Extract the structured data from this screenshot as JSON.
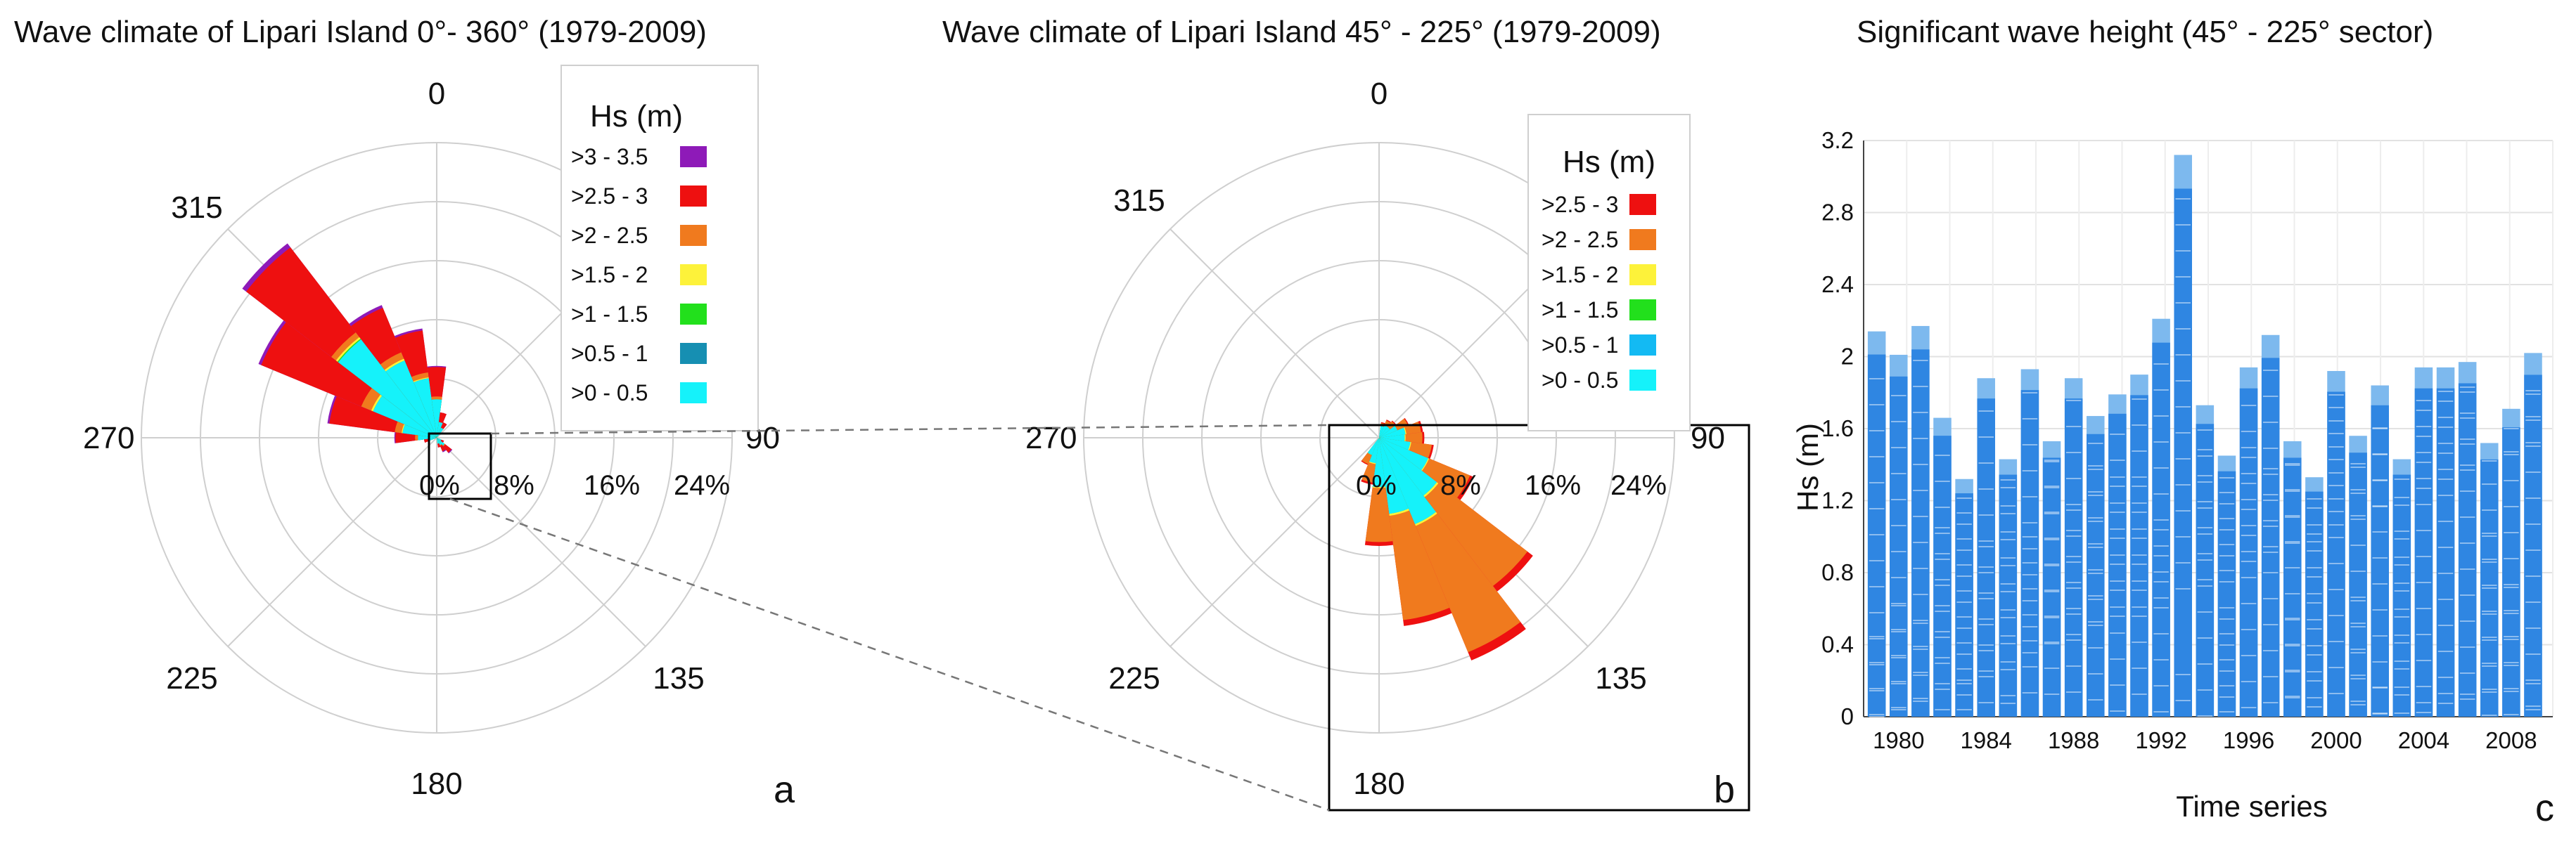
{
  "colors": {
    "purple": "#8e1ab8",
    "red": "#ee1010",
    "orange": "#f07a1e",
    "yellow": "#fdf23a",
    "green": "#22e01c",
    "teal": "#168fb2",
    "cyan": "#15f2fa",
    "blue": "#13baf3",
    "bar": "#2f86e2",
    "bar_light": "#7db9ee",
    "grid": "#cfcfcf"
  },
  "chart_data": [
    {
      "type": "wind-rose",
      "panel_label": "a",
      "title": "Wave climate of Lipari Island 0°- 360° (1979-2009)",
      "direction_labels": [
        "0",
        "90",
        "135",
        "180",
        "225",
        "270",
        "315"
      ],
      "radial_labels": [
        "0%",
        "8%",
        "16%",
        "24%"
      ],
      "radial_max_percent": 30,
      "legend_title": "Hs (m)",
      "legend_items": [
        {
          "label": ">3 - 3.5",
          "color": "#8e1ab8"
        },
        {
          "label": ">2.5 - 3",
          "color": "#ee1010"
        },
        {
          "label": ">2 - 2.5",
          "color": "#f07a1e"
        },
        {
          "label": ">1.5 - 2",
          "color": "#fdf23a"
        },
        {
          "label": ">1 - 1.5",
          "color": "#22e01c"
        },
        {
          "label": ">0.5 - 1",
          "color": "#168fb2"
        },
        {
          "label": ">0 - 0.5",
          "color": "#15f2fa"
        }
      ],
      "sectors": [
        {
          "direction": 300,
          "cum": [
            7,
            7,
            7,
            7.2,
            8.3,
            19.3,
            19.6
          ]
        },
        {
          "direction": 315,
          "cum": [
            12.6,
            12.6,
            12.7,
            12.9,
            13.5,
            24.4,
            24.9
          ]
        },
        {
          "direction": 330,
          "cum": [
            8.5,
            8.5,
            8.5,
            8.7,
            9.4,
            14.3,
            14.6
          ]
        },
        {
          "direction": 345,
          "cum": [
            6.1,
            6.1,
            6.1,
            6.2,
            6.7,
            11.0,
            11.2
          ]
        },
        {
          "direction": 360,
          "cum": [
            3.9,
            3.9,
            3.9,
            3.9,
            4.2,
            7.2,
            7.3
          ]
        },
        {
          "direction": 15,
          "cum": [
            1.6,
            1.6,
            1.6,
            1.6,
            1.6,
            2.6,
            2.6
          ]
        },
        {
          "direction": 30,
          "cum": [
            1.1,
            1.1,
            1.1,
            1.1,
            1.1,
            1.7,
            1.7
          ]
        },
        {
          "direction": 285,
          "cum": [
            3.5,
            3.5,
            3.5,
            3.6,
            4.3,
            11.0,
            11.2
          ]
        },
        {
          "direction": 270,
          "cum": [
            1.9,
            1.9,
            1.9,
            1.9,
            2.2,
            4.2,
            4.3
          ]
        },
        {
          "direction": 255,
          "cum": [
            0.8,
            0.8,
            0.8,
            0.8,
            0.8,
            1.3,
            1.3
          ]
        },
        {
          "direction": 135,
          "cum": [
            1.0,
            1.0,
            1.0,
            1.0,
            1.1,
            1.9,
            2.0
          ]
        },
        {
          "direction": 150,
          "cum": [
            0.8,
            0.8,
            0.8,
            0.8,
            0.9,
            1.5,
            1.6
          ]
        },
        {
          "direction": 165,
          "cum": [
            0.6,
            0.6,
            0.6,
            0.6,
            0.6,
            1.0,
            1.0
          ]
        },
        {
          "direction": 120,
          "cum": [
            0.5,
            0.5,
            0.5,
            0.5,
            0.5,
            0.8,
            0.8
          ]
        }
      ]
    },
    {
      "type": "wind-rose",
      "panel_label": "b",
      "title": "Wave climate of Lipari Island 45° - 225° (1979-2009)",
      "direction_labels": [
        "0",
        "90",
        "135",
        "180",
        "225",
        "270",
        "315"
      ],
      "radial_labels": [
        "0%",
        "8%",
        "16%",
        "24%"
      ],
      "radial_max_percent": 30,
      "legend_title": "Hs (m)",
      "legend_items": [
        {
          "label": ">2.5 - 3",
          "color": "#ee1010"
        },
        {
          "label": ">2 - 2.5",
          "color": "#f07a1e"
        },
        {
          "label": ">1.5 - 2",
          "color": "#fdf23a"
        },
        {
          "label": ">1 - 1.5",
          "color": "#22e01c"
        },
        {
          "label": ">0.5 - 1",
          "color": "#13baf3"
        },
        {
          "label": ">0 - 0.5",
          "color": "#15f2fa"
        }
      ],
      "sectors": [
        {
          "direction": 150,
          "cum": [
            9.5,
            9.5,
            9.5,
            9.7,
            23.6,
            24.5
          ]
        },
        {
          "direction": 135,
          "cum": [
            7.4,
            7.4,
            7.4,
            7.6,
            19.0,
            19.7
          ]
        },
        {
          "direction": 165,
          "cum": [
            7.8,
            7.8,
            7.8,
            8.0,
            18.7,
            19.3
          ]
        },
        {
          "direction": 180,
          "cum": [
            5.0,
            5.0,
            5.0,
            5.1,
            10.6,
            11.0
          ]
        },
        {
          "direction": 195,
          "cum": [
            2.6,
            2.6,
            2.6,
            2.7,
            4.6,
            4.8
          ]
        },
        {
          "direction": 210,
          "cum": [
            1.9,
            1.9,
            1.9,
            1.9,
            2.9,
            3.0
          ]
        },
        {
          "direction": 120,
          "cum": [
            5.4,
            5.4,
            5.4,
            5.5,
            10.0,
            10.4
          ]
        },
        {
          "direction": 105,
          "cum": [
            3.2,
            3.2,
            3.2,
            3.3,
            5.4,
            5.6
          ]
        },
        {
          "direction": 90,
          "cum": [
            2.6,
            2.6,
            2.6,
            2.7,
            4.4,
            4.6
          ]
        },
        {
          "direction": 75,
          "cum": [
            2.7,
            2.7,
            2.7,
            2.8,
            4.3,
            4.5
          ]
        },
        {
          "direction": 60,
          "cum": [
            2.0,
            2.0,
            2.0,
            2.0,
            3.2,
            3.3
          ]
        },
        {
          "direction": 45,
          "cum": [
            1.4,
            1.4,
            1.4,
            1.4,
            2.1,
            2.2
          ]
        },
        {
          "direction": 30,
          "cum": [
            1.4,
            1.4,
            1.4,
            1.4,
            1.9,
            2.0
          ]
        },
        {
          "direction": 15,
          "cum": [
            1.2,
            1.2,
            1.2,
            1.2,
            1.5,
            1.6
          ]
        }
      ]
    },
    {
      "type": "bar",
      "panel_label": "c",
      "title": "Significant wave height (45° - 225° sector)",
      "xlabel": "Time series",
      "ylabel": "Hs (m)",
      "ylim": [
        0,
        3.2
      ],
      "yticks": [
        "0",
        "0.4",
        "0.8",
        "1.2",
        "1.6",
        "2",
        "2.4",
        "2.8",
        "3.2"
      ],
      "xtick_labels": [
        "1980",
        "1984",
        "1988",
        "1992",
        "1996",
        "2000",
        "2004",
        "2008"
      ],
      "xticks_years": [
        1980,
        1984,
        1988,
        1992,
        1996,
        2000,
        2004,
        2008
      ],
      "years": [
        1979,
        1980,
        1981,
        1982,
        1983,
        1984,
        1985,
        1986,
        1987,
        1988,
        1989,
        1990,
        1991,
        1992,
        1993,
        1994,
        1995,
        1996,
        1997,
        1998,
        1999,
        2000,
        2001,
        2002,
        2003,
        2004,
        2005,
        2006,
        2007,
        2008,
        2009
      ],
      "values": [
        2.14,
        2.01,
        2.17,
        1.66,
        1.32,
        1.88,
        1.43,
        1.93,
        1.53,
        1.88,
        1.67,
        1.79,
        1.9,
        2.21,
        3.12,
        1.73,
        1.45,
        1.94,
        2.12,
        1.53,
        1.33,
        1.92,
        1.56,
        1.84,
        1.43,
        1.94,
        1.94,
        1.97,
        1.52,
        1.71,
        2.02
      ]
    }
  ]
}
